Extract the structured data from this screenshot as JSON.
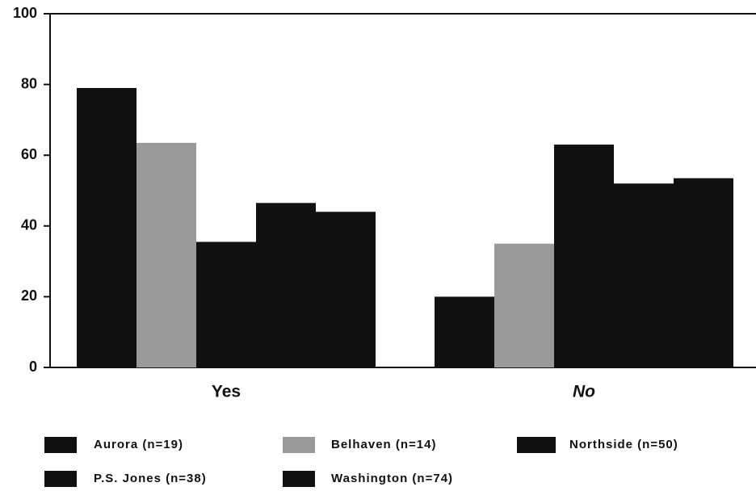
{
  "chart_data": {
    "type": "bar",
    "categories": [
      "Yes",
      "No"
    ],
    "series": [
      {
        "name": "Aurora (n=19)",
        "color": "#111111",
        "values": [
          79,
          20
        ]
      },
      {
        "name": "Belhaven (n=14)",
        "color": "#9a9a9a",
        "values": [
          63.5,
          35
        ]
      },
      {
        "name": "Northside (n=50)",
        "color": "#111111",
        "values": [
          35.5,
          63
        ]
      },
      {
        "name": "P.S. Jones (n=38)",
        "color": "#111111",
        "values": [
          46.5,
          52
        ]
      },
      {
        "name": "Washington (n=74)",
        "color": "#111111",
        "values": [
          44,
          53.5
        ]
      }
    ],
    "ylim": [
      0,
      100
    ],
    "yticks": [
      0,
      20,
      40,
      60,
      80,
      100
    ],
    "grid": false
  }
}
